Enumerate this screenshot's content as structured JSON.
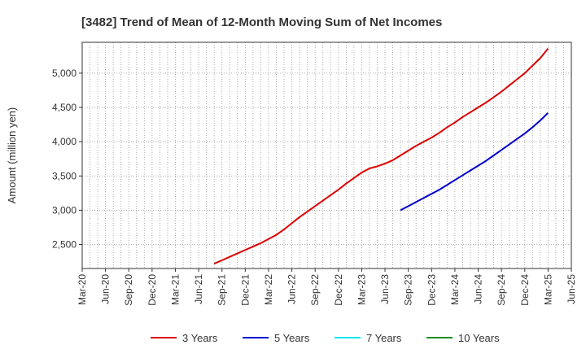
{
  "chart_data": {
    "type": "line",
    "title": "[3482]  Trend of Mean of 12-Month Moving Sum of Net Incomes",
    "xlabel": "",
    "ylabel": "Amount (million yen)",
    "ylim": [
      2150,
      5450
    ],
    "y_ticks": [
      2500,
      3000,
      3500,
      4000,
      4500,
      5000
    ],
    "y_tick_labels": [
      "2,500",
      "3,000",
      "3,500",
      "4,000",
      "4,500",
      "5,000"
    ],
    "x_ticks": [
      "Mar-20",
      "Jun-20",
      "Sep-20",
      "Dec-20",
      "Mar-21",
      "Jun-21",
      "Sep-21",
      "Dec-21",
      "Mar-22",
      "Jun-22",
      "Sep-22",
      "Dec-22",
      "Mar-23",
      "Jun-23",
      "Sep-23",
      "Dec-23",
      "Mar-24",
      "Jun-24",
      "Sep-24",
      "Dec-24",
      "Mar-25",
      "Jun-25"
    ],
    "grid": true,
    "legend_position": "bottom",
    "series": [
      {
        "name": "3 Years",
        "color": "#dd0000",
        "points": [
          [
            "Aug-21",
            2220
          ],
          [
            "Sep-21",
            2270
          ],
          [
            "Oct-21",
            2320
          ],
          [
            "Nov-21",
            2370
          ],
          [
            "Dec-21",
            2420
          ],
          [
            "Jan-22",
            2470
          ],
          [
            "Feb-22",
            2520
          ],
          [
            "Mar-22",
            2580
          ],
          [
            "Apr-22",
            2640
          ],
          [
            "May-22",
            2720
          ],
          [
            "Jun-22",
            2810
          ],
          [
            "Jul-22",
            2900
          ],
          [
            "Aug-22",
            2980
          ],
          [
            "Sep-22",
            3060
          ],
          [
            "Oct-22",
            3140
          ],
          [
            "Nov-22",
            3220
          ],
          [
            "Dec-22",
            3300
          ],
          [
            "Jan-23",
            3390
          ],
          [
            "Feb-23",
            3470
          ],
          [
            "Mar-23",
            3550
          ],
          [
            "Apr-23",
            3610
          ],
          [
            "May-23",
            3640
          ],
          [
            "Jun-23",
            3680
          ],
          [
            "Jul-23",
            3730
          ],
          [
            "Aug-23",
            3800
          ],
          [
            "Sep-23",
            3870
          ],
          [
            "Oct-23",
            3940
          ],
          [
            "Nov-23",
            4000
          ],
          [
            "Dec-23",
            4060
          ],
          [
            "Jan-24",
            4130
          ],
          [
            "Feb-24",
            4210
          ],
          [
            "Mar-24",
            4280
          ],
          [
            "Apr-24",
            4360
          ],
          [
            "May-24",
            4430
          ],
          [
            "Jun-24",
            4500
          ],
          [
            "Jul-24",
            4570
          ],
          [
            "Aug-24",
            4650
          ],
          [
            "Sep-24",
            4730
          ],
          [
            "Oct-24",
            4820
          ],
          [
            "Nov-24",
            4910
          ],
          [
            "Dec-24",
            5000
          ],
          [
            "Jan-25",
            5110
          ],
          [
            "Feb-25",
            5220
          ],
          [
            "Mar-25",
            5360
          ]
        ]
      },
      {
        "name": "5 Years",
        "color": "#0000cc",
        "points": [
          [
            "Aug-23",
            3000
          ],
          [
            "Sep-23",
            3060
          ],
          [
            "Oct-23",
            3120
          ],
          [
            "Nov-23",
            3180
          ],
          [
            "Dec-23",
            3240
          ],
          [
            "Jan-24",
            3300
          ],
          [
            "Feb-24",
            3370
          ],
          [
            "Mar-24",
            3440
          ],
          [
            "Apr-24",
            3510
          ],
          [
            "May-24",
            3580
          ],
          [
            "Jun-24",
            3650
          ],
          [
            "Jul-24",
            3720
          ],
          [
            "Aug-24",
            3800
          ],
          [
            "Sep-24",
            3880
          ],
          [
            "Oct-24",
            3960
          ],
          [
            "Nov-24",
            4040
          ],
          [
            "Dec-24",
            4120
          ],
          [
            "Jan-25",
            4210
          ],
          [
            "Feb-25",
            4310
          ],
          [
            "Mar-25",
            4420
          ]
        ]
      },
      {
        "name": "7 Years",
        "color": "#00e5ee",
        "points": []
      },
      {
        "name": "10 Years",
        "color": "#228b22",
        "points": []
      }
    ]
  }
}
